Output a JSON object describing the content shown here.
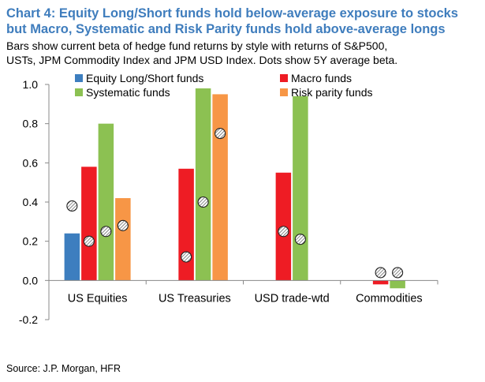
{
  "header": {
    "title_line1": "Chart 4: Equity Long/Short funds hold below-average exposure to stocks",
    "title_line2": "but Macro, Systematic and Risk Parity funds hold above-average longs",
    "subtitle_line1": "Bars show current beta of hedge fund returns by style with returns of S&P500,",
    "subtitle_line2": "USTs, JPM Commodity Index and JPM USD Index. Dots show 5Y average beta."
  },
  "footer": {
    "source": "Source: J.P. Morgan, HFR"
  },
  "chart_data": {
    "type": "bar",
    "title": "Chart 4: Equity Long/Short funds hold below-average exposure to stocks but Macro, Systematic and Risk Parity funds hold above-average longs",
    "categories": [
      "US Equities",
      "US Treasuries",
      "USD trade-wtd",
      "Commodities"
    ],
    "ylim": [
      -0.2,
      1.0
    ],
    "yticks": [
      "-0.2",
      "0.0",
      "0.2",
      "0.4",
      "0.6",
      "0.8",
      "1.0"
    ],
    "ytick_values": [
      -0.2,
      0.0,
      0.2,
      0.4,
      0.6,
      0.8,
      1.0
    ],
    "grid": false,
    "legend_position": "top",
    "series": [
      {
        "name": "Equity Long/Short funds",
        "color": "#3d7ebf",
        "values": [
          0.24,
          null,
          null,
          null
        ],
        "avg_5y": [
          0.38,
          null,
          null,
          null
        ]
      },
      {
        "name": "Macro funds",
        "color": "#ee1c24",
        "values": [
          0.58,
          0.57,
          0.55,
          -0.02
        ],
        "avg_5y": [
          0.2,
          0.12,
          0.25,
          0.04
        ]
      },
      {
        "name": "Systematic funds",
        "color": "#8cc152",
        "values": [
          0.8,
          0.98,
          0.94,
          -0.04
        ],
        "avg_5y": [
          0.25,
          0.4,
          0.21,
          0.04
        ]
      },
      {
        "name": "Risk parity funds",
        "color": "#f79646",
        "values": [
          0.42,
          0.95,
          null,
          null
        ],
        "avg_5y": [
          0.28,
          0.75,
          null,
          null
        ]
      }
    ]
  }
}
